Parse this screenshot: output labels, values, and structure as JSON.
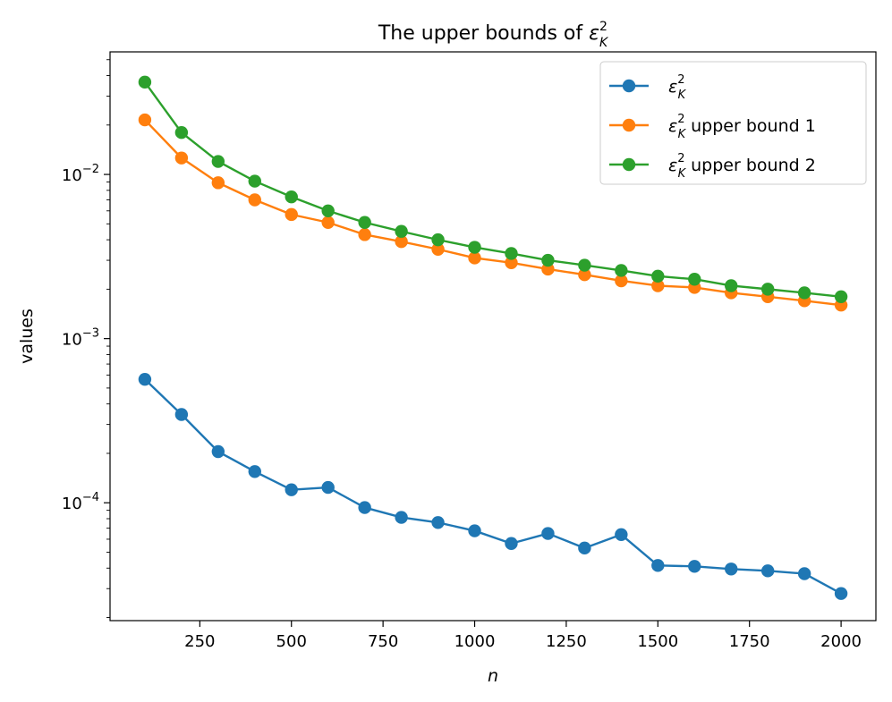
{
  "chart_data": {
    "type": "line",
    "title": "The upper bounds of ε²_K",
    "title_parts": {
      "prefix": "The upper bounds of ",
      "symbol": "ε",
      "sup": "2",
      "sub": "K"
    },
    "xlabel": "n",
    "ylabel": "values",
    "yscale": "log",
    "xlim": [
      5,
      2095
    ],
    "ylim": [
      1.915e-05,
      0.0558
    ],
    "x_ticks": [
      250,
      500,
      750,
      1000,
      1250,
      1500,
      1750,
      2000
    ],
    "x_tick_labels": [
      "250",
      "500",
      "750",
      "1000",
      "1250",
      "1500",
      "1750",
      "2000"
    ],
    "y_ticks": [
      0.0001,
      0.001,
      0.01
    ],
    "y_tick_labels": [
      {
        "base": "10",
        "exp": "−4"
      },
      {
        "base": "10",
        "exp": "−3"
      },
      {
        "base": "10",
        "exp": "−2"
      }
    ],
    "x": [
      100,
      200,
      300,
      400,
      500,
      600,
      700,
      800,
      900,
      1000,
      1100,
      1200,
      1300,
      1400,
      1500,
      1600,
      1700,
      1800,
      1900,
      2000
    ],
    "legend_position": "top-right",
    "series": [
      {
        "name": "ε²_K",
        "legend_parts": {
          "symbol": "ε",
          "sup": "2",
          "sub": "K",
          "suffix": ""
        },
        "color": "#1f77b4",
        "values": [
          0.000565,
          0.000345,
          0.000205,
          0.000155,
          0.00012,
          0.000124,
          9.35e-05,
          8.15e-05,
          7.58e-05,
          6.75e-05,
          5.65e-05,
          6.5e-05,
          5.3e-05,
          6.4e-05,
          4.15e-05,
          4.1e-05,
          3.95e-05,
          3.85e-05,
          3.7e-05,
          2.8e-05
        ]
      },
      {
        "name": "ε²_K upper bound 1",
        "legend_parts": {
          "symbol": "ε",
          "sup": "2",
          "sub": "K",
          "suffix": " upper bound 1"
        },
        "color": "#ff7f0e",
        "values": [
          0.0215,
          0.0126,
          0.0089,
          0.007,
          0.0057,
          0.0051,
          0.0043,
          0.0039,
          0.0035,
          0.0031,
          0.0029,
          0.00265,
          0.00245,
          0.00225,
          0.0021,
          0.00205,
          0.0019,
          0.0018,
          0.0017,
          0.0016
        ]
      },
      {
        "name": "ε²_K upper bound 2",
        "legend_parts": {
          "symbol": "ε",
          "sup": "2",
          "sub": "K",
          "suffix": " upper bound 2"
        },
        "color": "#2ca02c",
        "values": [
          0.0365,
          0.018,
          0.012,
          0.0091,
          0.0073,
          0.006,
          0.0051,
          0.0045,
          0.004,
          0.0036,
          0.0033,
          0.003,
          0.0028,
          0.0026,
          0.0024,
          0.0023,
          0.0021,
          0.002,
          0.0019,
          0.0018
        ]
      }
    ]
  }
}
